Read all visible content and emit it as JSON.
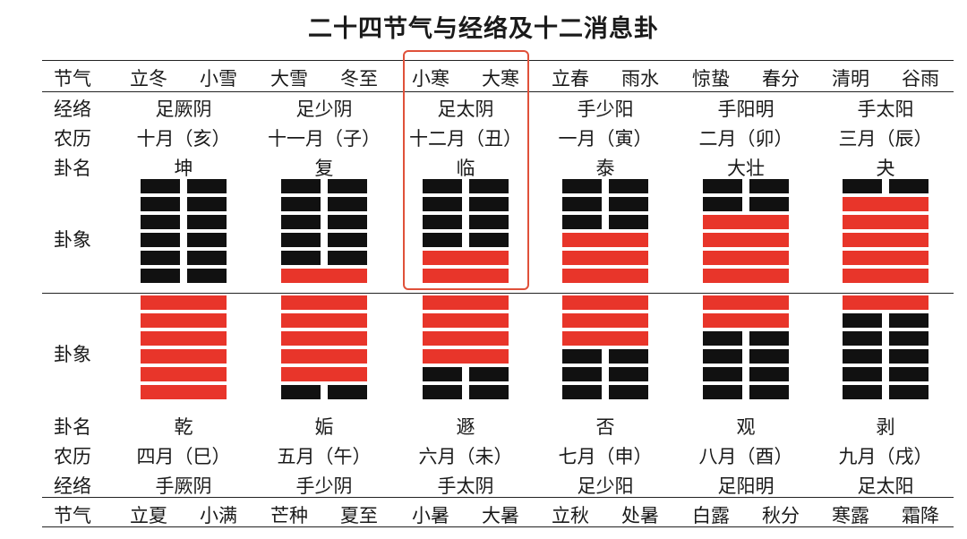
{
  "title": "二十四节气与经络及十二消息卦",
  "row_labels": {
    "jieqi": "节气",
    "jingluo": "经络",
    "nongli": "农历",
    "guaming": "卦名",
    "guaxiang": "卦象"
  },
  "colors": {
    "yang": "#e8352a",
    "yin": "#111111",
    "highlight": "#e0513a"
  },
  "top": {
    "jieqi": [
      "立冬",
      "小雪",
      "大雪",
      "冬至",
      "小寒",
      "大寒",
      "立春",
      "雨水",
      "惊蛰",
      "春分",
      "清明",
      "谷雨"
    ],
    "jingluo": [
      "足厥阴",
      "足少阴",
      "足太阴",
      "手少阳",
      "手阳明",
      "手太阳"
    ],
    "nongli": [
      "十月（亥）",
      "十一月（子）",
      "十二月（丑）",
      "一月（寅）",
      "二月（卯）",
      "三月（辰）"
    ],
    "guaming": [
      "坤",
      "复",
      "临",
      "泰",
      "大壮",
      "夬"
    ],
    "hexagrams": [
      [
        "yin",
        "yin",
        "yin",
        "yin",
        "yin",
        "yin"
      ],
      [
        "yin",
        "yin",
        "yin",
        "yin",
        "yin",
        "yang"
      ],
      [
        "yin",
        "yin",
        "yin",
        "yin",
        "yang",
        "yang"
      ],
      [
        "yin",
        "yin",
        "yin",
        "yang",
        "yang",
        "yang"
      ],
      [
        "yin",
        "yin",
        "yang",
        "yang",
        "yang",
        "yang"
      ],
      [
        "yin",
        "yang",
        "yang",
        "yang",
        "yang",
        "yang"
      ]
    ]
  },
  "bottom": {
    "hexagrams": [
      [
        "yang",
        "yang",
        "yang",
        "yang",
        "yang",
        "yang"
      ],
      [
        "yang",
        "yang",
        "yang",
        "yang",
        "yang",
        "yin"
      ],
      [
        "yang",
        "yang",
        "yang",
        "yang",
        "yin",
        "yin"
      ],
      [
        "yang",
        "yang",
        "yang",
        "yin",
        "yin",
        "yin"
      ],
      [
        "yang",
        "yang",
        "yin",
        "yin",
        "yin",
        "yin"
      ],
      [
        "yang",
        "yin",
        "yin",
        "yin",
        "yin",
        "yin"
      ]
    ],
    "guaming": [
      "乾",
      "姤",
      "遯",
      "否",
      "观",
      "剥"
    ],
    "nongli": [
      "四月（巳）",
      "五月（午）",
      "六月（未）",
      "七月（申）",
      "八月（酉）",
      "九月（戌）"
    ],
    "jingluo": [
      "手厥阴",
      "手少阴",
      "手太阴",
      "足少阳",
      "足阳明",
      "足太阳"
    ],
    "jieqi": [
      "立夏",
      "小满",
      "芒种",
      "夏至",
      "小暑",
      "大暑",
      "立秋",
      "处暑",
      "白露",
      "秋分",
      "寒露",
      "霜降"
    ]
  }
}
